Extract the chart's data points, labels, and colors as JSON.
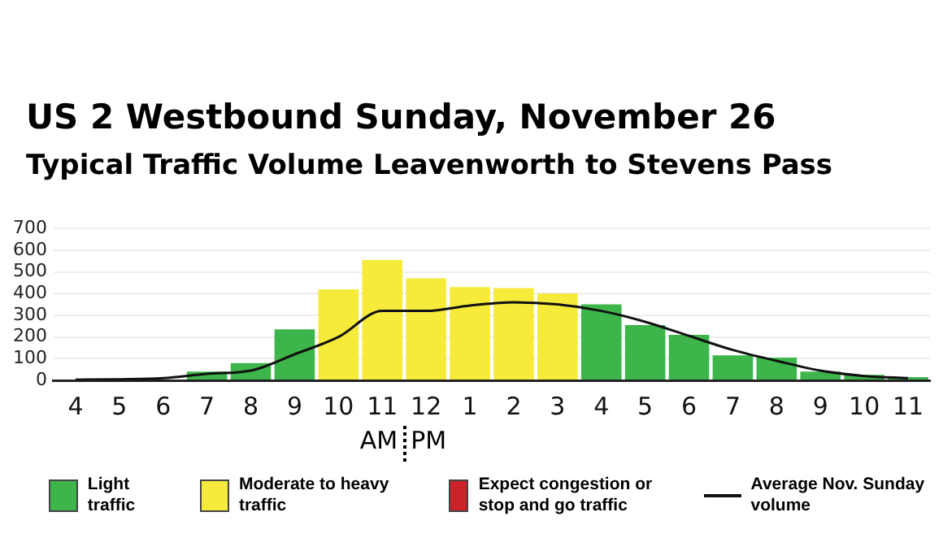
{
  "chart_data": {
    "type": "bar",
    "title": "US 2 Westbound Sunday, November 26",
    "subtitle": "Typical Traffic Volume Leavenworth to Stevens Pass",
    "categories": [
      "4",
      "5",
      "6",
      "7",
      "8",
      "9",
      "10",
      "11",
      "12",
      "1",
      "2",
      "3",
      "4",
      "5",
      "6",
      "7",
      "8",
      "9",
      "10",
      "11"
    ],
    "stacked": true,
    "series": [
      {
        "name": "Light traffic",
        "color": "#3db54a",
        "values": [
          null,
          5,
          null,
          40,
          80,
          235,
          null,
          null,
          null,
          null,
          null,
          null,
          350,
          255,
          210,
          115,
          105,
          40,
          25,
          15
        ]
      },
      {
        "name": "Moderate to heavy traffic",
        "color": "#f6eb3a",
        "values": [
          null,
          null,
          null,
          null,
          null,
          null,
          420,
          555,
          470,
          430,
          425,
          400,
          null,
          null,
          null,
          null,
          null,
          null,
          null,
          null
        ]
      },
      {
        "name": "Expect congestion or stop and go traffic",
        "color": "#cc2229",
        "values": [
          null,
          null,
          null,
          null,
          null,
          null,
          null,
          null,
          null,
          null,
          null,
          null,
          null,
          null,
          null,
          null,
          null,
          null,
          null,
          null
        ]
      },
      {
        "name": "Average Nov. Sunday volume",
        "type": "line",
        "color": "#111111",
        "values": [
          3,
          5,
          10,
          30,
          45,
          120,
          200,
          320,
          320,
          345,
          360,
          350,
          320,
          270,
          205,
          140,
          90,
          45,
          20,
          10
        ]
      }
    ],
    "ylim": [
      0,
      700
    ],
    "yticks": [
      0,
      100,
      200,
      300,
      400,
      500,
      600,
      700
    ],
    "grid": "y",
    "legend": "bottom",
    "marker": "none",
    "annotations": [
      "AM",
      "PM"
    ]
  }
}
